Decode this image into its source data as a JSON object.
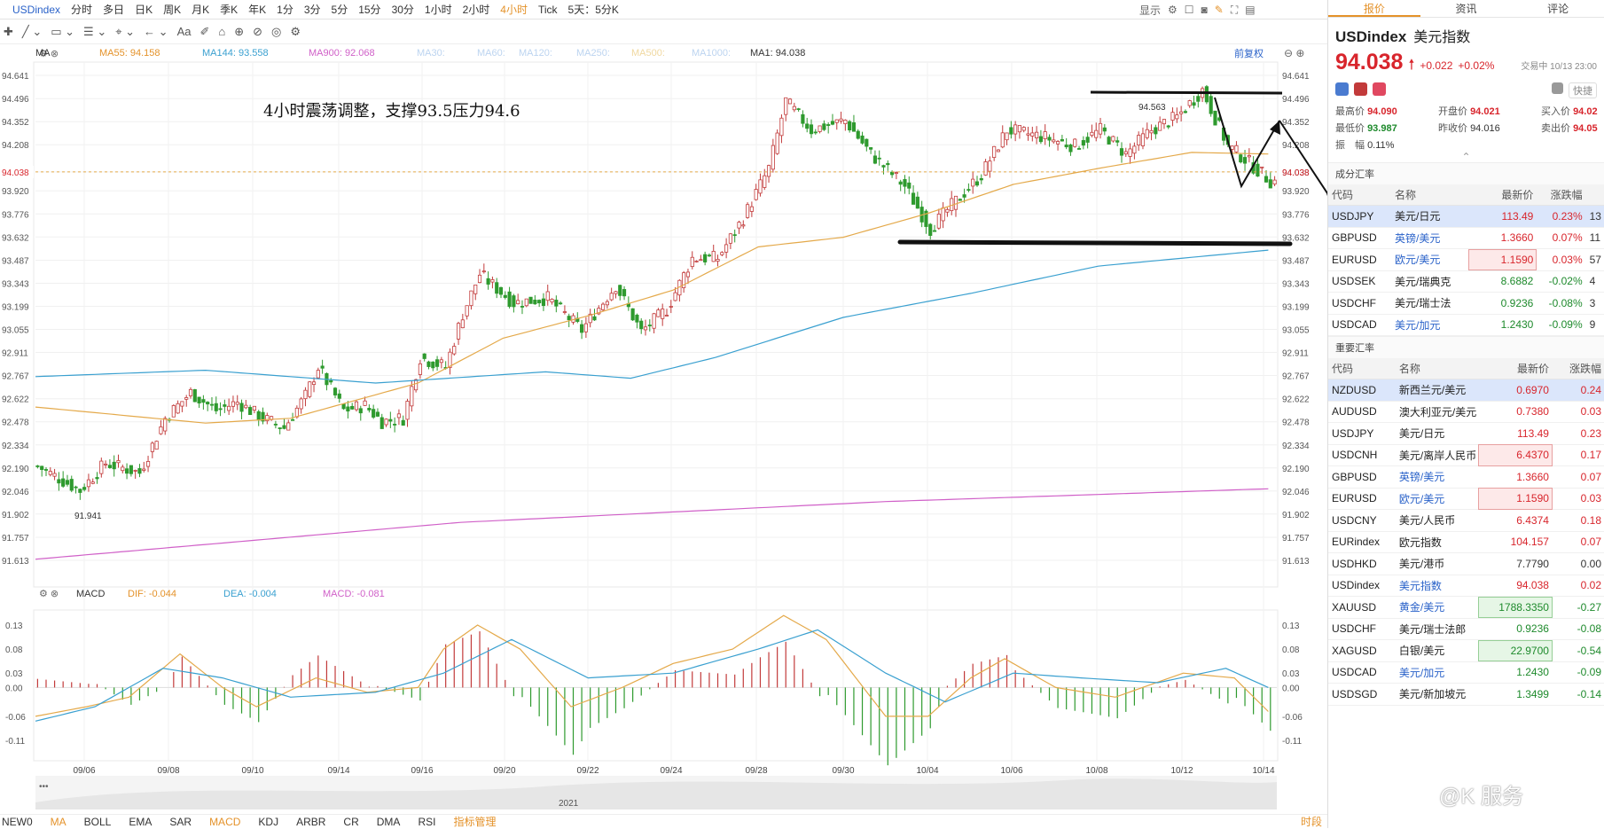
{
  "topbar": {
    "symbol": "USDindex",
    "periods": [
      "分时",
      "多日",
      "日K",
      "周K",
      "月K",
      "季K",
      "年K",
      "1分",
      "3分",
      "5分",
      "15分",
      "30分",
      "1小时",
      "2小时",
      "4小时",
      "Tick",
      "5天：5分K"
    ],
    "active_period": "4小时",
    "display_label": "显示"
  },
  "toolbar": {
    "icons": [
      "crosshair-icon",
      "line-icon",
      "rect-icon",
      "fib-icon",
      "measure-icon",
      "undo-icon",
      "text-icon",
      "eraser-icon",
      "settings-icon"
    ],
    "text_tool": "Aa"
  },
  "ma_legend": [
    {
      "label": "MA",
      "value": "",
      "color": "#333333"
    },
    {
      "label": "MA55: 94.158",
      "color": "#e4922a"
    },
    {
      "label": "MA144: 93.558",
      "color": "#3aa0d0"
    },
    {
      "label": "MA900: 92.068",
      "color": "#d060c8"
    },
    {
      "label": "MA30:",
      "color": "#bcd4f0"
    },
    {
      "label": "MA60:",
      "color": "#bcd4f0"
    },
    {
      "label": "MA120:",
      "color": "#bcd4f0"
    },
    {
      "label": "MA250:",
      "color": "#bcd4f0"
    },
    {
      "label": "MA500:",
      "color": "#f0d8a0"
    },
    {
      "label": "MA1000:",
      "color": "#bcd4f0"
    },
    {
      "label": "MA1: 94.038",
      "color": "#333333"
    }
  ],
  "qianfuquan": "前复权",
  "chart_data": {
    "type": "candlestick",
    "annotation": "4小时震荡调整，支撑93.5压力94.6",
    "price_axis_ticks": [
      94.641,
      94.496,
      94.352,
      94.208,
      94.038,
      93.92,
      93.776,
      93.632,
      93.487,
      93.343,
      93.199,
      93.055,
      92.911,
      92.767,
      92.622,
      92.478,
      92.334,
      92.19,
      92.046,
      91.902,
      91.757,
      91.613
    ],
    "current_price": "94.038",
    "high_label": "94.563",
    "low_label": "91.941",
    "date_ticks": [
      "09/06",
      "09/08",
      "09/10",
      "09/14",
      "09/16",
      "09/20",
      "09/22",
      "09/24",
      "09/28",
      "09/30",
      "10/04",
      "10/06",
      "10/08",
      "10/12",
      "10/14"
    ],
    "year_label": "2021",
    "price_path": [
      [
        0,
        92.2
      ],
      [
        10,
        92.05
      ],
      [
        16,
        92.22
      ],
      [
        24,
        92.16
      ],
      [
        30,
        92.5
      ],
      [
        36,
        92.66
      ],
      [
        42,
        92.55
      ],
      [
        47,
        92.6
      ],
      [
        53,
        92.5
      ],
      [
        58,
        92.44
      ],
      [
        63,
        92.64
      ],
      [
        66,
        92.82
      ],
      [
        72,
        92.55
      ],
      [
        77,
        92.58
      ],
      [
        81,
        92.48
      ],
      [
        86,
        92.5
      ],
      [
        90,
        92.88
      ],
      [
        96,
        92.82
      ],
      [
        100,
        93.15
      ],
      [
        104,
        93.4
      ],
      [
        112,
        93.22
      ],
      [
        120,
        93.25
      ],
      [
        128,
        93.05
      ],
      [
        136,
        93.33
      ],
      [
        142,
        93.04
      ],
      [
        148,
        93.18
      ],
      [
        154,
        93.5
      ],
      [
        160,
        93.5
      ],
      [
        166,
        93.75
      ],
      [
        172,
        94.06
      ],
      [
        176,
        94.48
      ],
      [
        182,
        94.3
      ],
      [
        190,
        94.36
      ],
      [
        196,
        94.15
      ],
      [
        204,
        93.95
      ],
      [
        210,
        93.68
      ],
      [
        214,
        93.8
      ],
      [
        222,
        94.02
      ],
      [
        228,
        94.3
      ],
      [
        236,
        94.26
      ],
      [
        244,
        94.2
      ],
      [
        250,
        94.3
      ],
      [
        256,
        94.15
      ],
      [
        262,
        94.3
      ],
      [
        268,
        94.38
      ],
      [
        274,
        94.55
      ],
      [
        280,
        94.2
      ],
      [
        284,
        94.12
      ],
      [
        290,
        93.98
      ]
    ],
    "ma55_path": [
      [
        0,
        92.57
      ],
      [
        40,
        92.47
      ],
      [
        60,
        92.5
      ],
      [
        90,
        92.72
      ],
      [
        110,
        93.0
      ],
      [
        130,
        93.14
      ],
      [
        150,
        93.3
      ],
      [
        170,
        93.57
      ],
      [
        190,
        93.63
      ],
      [
        210,
        93.78
      ],
      [
        230,
        93.96
      ],
      [
        250,
        94.06
      ],
      [
        272,
        94.16
      ],
      [
        290,
        94.15
      ]
    ],
    "ma144_path": [
      [
        0,
        92.76
      ],
      [
        40,
        92.8
      ],
      [
        80,
        92.72
      ],
      [
        120,
        92.79
      ],
      [
        140,
        92.75
      ],
      [
        160,
        92.88
      ],
      [
        190,
        93.13
      ],
      [
        220,
        93.28
      ],
      [
        250,
        93.45
      ],
      [
        290,
        93.55
      ]
    ],
    "ma900_path": [
      [
        0,
        91.62
      ],
      [
        100,
        91.85
      ],
      [
        200,
        91.98
      ],
      [
        290,
        92.06
      ]
    ],
    "macd": {
      "legend": [
        {
          "label": "MACD",
          "color": "#333333"
        },
        {
          "label": "DIF: -0.044",
          "color": "#e4922a"
        },
        {
          "label": "DEA: -0.004",
          "color": "#3aa0d0"
        },
        {
          "label": "MACD: -0.081",
          "color": "#d060c8"
        }
      ],
      "ticks": [
        "0.13",
        "0.08",
        "0.03",
        "0.00",
        "-0.06",
        "-0.11"
      ],
      "tick_values": [
        0.13,
        0.08,
        0.03,
        0.0,
        -0.06,
        -0.11
      ],
      "dif_path": [
        [
          0,
          -0.06
        ],
        [
          12,
          -0.04
        ],
        [
          22,
          -0.02
        ],
        [
          34,
          0.07
        ],
        [
          44,
          0.0
        ],
        [
          52,
          -0.04
        ],
        [
          66,
          0.02
        ],
        [
          78,
          -0.01
        ],
        [
          90,
          0.0
        ],
        [
          96,
          0.08
        ],
        [
          104,
          0.13
        ],
        [
          114,
          0.08
        ],
        [
          126,
          -0.04
        ],
        [
          138,
          0.0
        ],
        [
          150,
          0.05
        ],
        [
          164,
          0.08
        ],
        [
          176,
          0.15
        ],
        [
          186,
          0.1
        ],
        [
          200,
          -0.06
        ],
        [
          210,
          -0.06
        ],
        [
          220,
          0.02
        ],
        [
          228,
          0.06
        ],
        [
          240,
          0.0
        ],
        [
          254,
          -0.02
        ],
        [
          270,
          0.03
        ],
        [
          282,
          0.02
        ],
        [
          290,
          -0.05
        ]
      ],
      "dea_path": [
        [
          0,
          -0.07
        ],
        [
          14,
          -0.04
        ],
        [
          30,
          0.04
        ],
        [
          44,
          0.02
        ],
        [
          60,
          -0.02
        ],
        [
          80,
          -0.01
        ],
        [
          96,
          0.03
        ],
        [
          112,
          0.1
        ],
        [
          130,
          0.02
        ],
        [
          150,
          0.03
        ],
        [
          170,
          0.08
        ],
        [
          184,
          0.12
        ],
        [
          200,
          0.03
        ],
        [
          214,
          -0.03
        ],
        [
          230,
          0.03
        ],
        [
          246,
          0.02
        ],
        [
          264,
          0.01
        ],
        [
          280,
          0.04
        ],
        [
          290,
          0.0
        ]
      ]
    }
  },
  "bottombar": {
    "items": [
      "NEW0",
      "MA",
      "BOLL",
      "EMA",
      "SAR",
      "MACD",
      "KDJ",
      "ARBR",
      "CR",
      "DMA",
      "RSI",
      "指标管理"
    ],
    "active": [
      "MA",
      "MACD"
    ],
    "right": "时段"
  },
  "side": {
    "tabs": [
      "报价",
      "资讯",
      "评论"
    ],
    "active_tab": "报价",
    "code": "USDindex",
    "name": "美元指数",
    "price": "94.038",
    "change": "+0.022",
    "change_pct": "+0.02%",
    "status": "交易中 10/13 23:00",
    "stats": [
      {
        "k": "最高价",
        "v": "94.090",
        "c": "up"
      },
      {
        "k": "开盘价",
        "v": "94.021",
        "c": "up"
      },
      {
        "k": "买入价",
        "v": "94.02",
        "c": "up"
      },
      {
        "k": "最低价",
        "v": "93.987",
        "c": "dn"
      },
      {
        "k": "昨收价",
        "v": "94.016",
        "c": "n"
      },
      {
        "k": "卖出价",
        "v": "94.05",
        "c": "up"
      },
      {
        "k": "振　幅",
        "v": "0.11%",
        "c": "n"
      }
    ],
    "quick_label": "快捷",
    "section1": {
      "title": "成分汇率",
      "headers": [
        "代码",
        "名称",
        "最新价",
        "涨跌幅"
      ],
      "rows": [
        {
          "code": "USDJPY",
          "name": "美元/日元",
          "price": "113.49",
          "chg": "0.23%",
          "extra": "13",
          "dir": "up",
          "sel": true,
          "blue": false,
          "box": ""
        },
        {
          "code": "GBPUSD",
          "name": "英镑/美元",
          "price": "1.3660",
          "chg": "0.07%",
          "extra": "11",
          "dir": "up",
          "sel": false,
          "blue": true,
          "box": ""
        },
        {
          "code": "EURUSD",
          "name": "欧元/美元",
          "price": "1.1590",
          "chg": "0.03%",
          "extra": "57",
          "dir": "up",
          "sel": false,
          "blue": true,
          "box": "r"
        },
        {
          "code": "USDSEK",
          "name": "美元/瑞典克",
          "price": "8.6882",
          "chg": "-0.02%",
          "extra": "4",
          "dir": "dn",
          "sel": false,
          "blue": false,
          "box": ""
        },
        {
          "code": "USDCHF",
          "name": "美元/瑞士法",
          "price": "0.9236",
          "chg": "-0.08%",
          "extra": "3",
          "dir": "dn",
          "sel": false,
          "blue": false,
          "box": ""
        },
        {
          "code": "USDCAD",
          "name": "美元/加元",
          "price": "1.2430",
          "chg": "-0.09%",
          "extra": "9",
          "dir": "dn",
          "sel": false,
          "blue": true,
          "box": ""
        }
      ]
    },
    "section2": {
      "title": "重要汇率",
      "headers": [
        "代码",
        "名称",
        "最新价",
        "涨跌幅"
      ],
      "rows": [
        {
          "code": "NZDUSD",
          "name": "新西兰元/美元",
          "price": "0.6970",
          "chg": "0.24",
          "dir": "up",
          "sel": true,
          "blue": false,
          "box": ""
        },
        {
          "code": "AUDUSD",
          "name": "澳大利亚元/美元",
          "price": "0.7380",
          "chg": "0.03",
          "dir": "up",
          "sel": false,
          "blue": false,
          "box": ""
        },
        {
          "code": "USDJPY",
          "name": "美元/日元",
          "price": "113.49",
          "chg": "0.23",
          "dir": "up",
          "sel": false,
          "blue": false,
          "box": ""
        },
        {
          "code": "USDCNH",
          "name": "美元/离岸人民币",
          "price": "6.4370",
          "chg": "0.17",
          "dir": "up",
          "sel": false,
          "blue": false,
          "box": "r"
        },
        {
          "code": "GBPUSD",
          "name": "英镑/美元",
          "price": "1.3660",
          "chg": "0.07",
          "dir": "up",
          "sel": false,
          "blue": true,
          "box": ""
        },
        {
          "code": "EURUSD",
          "name": "欧元/美元",
          "price": "1.1590",
          "chg": "0.03",
          "dir": "up",
          "sel": false,
          "blue": true,
          "box": "r"
        },
        {
          "code": "USDCNY",
          "name": "美元/人民币",
          "price": "6.4374",
          "chg": "0.18",
          "dir": "up",
          "sel": false,
          "blue": false,
          "box": ""
        },
        {
          "code": "EURindex",
          "name": "欧元指数",
          "price": "104.157",
          "chg": "0.07",
          "dir": "up",
          "sel": false,
          "blue": false,
          "box": ""
        },
        {
          "code": "USDHKD",
          "name": "美元/港币",
          "price": "7.7790",
          "chg": "0.00",
          "dir": "n",
          "sel": false,
          "blue": false,
          "box": ""
        },
        {
          "code": "USDindex",
          "name": "美元指数",
          "price": "94.038",
          "chg": "0.02",
          "dir": "up",
          "sel": false,
          "blue": true,
          "box": ""
        },
        {
          "code": "XAUUSD",
          "name": "黄金/美元",
          "price": "1788.3350",
          "chg": "-0.27",
          "dir": "dn",
          "sel": false,
          "blue": true,
          "box": "g"
        },
        {
          "code": "USDCHF",
          "name": "美元/瑞士法郎",
          "price": "0.9236",
          "chg": "-0.08",
          "dir": "dn",
          "sel": false,
          "blue": false,
          "box": ""
        },
        {
          "code": "XAGUSD",
          "name": "白银/美元",
          "price": "22.9700",
          "chg": "-0.54",
          "dir": "dn",
          "sel": false,
          "blue": false,
          "box": "g"
        },
        {
          "code": "USDCAD",
          "name": "美元/加元",
          "price": "1.2430",
          "chg": "-0.09",
          "dir": "dn",
          "sel": false,
          "blue": true,
          "box": ""
        },
        {
          "code": "USDSGD",
          "name": "美元/新加坡元",
          "price": "1.3499",
          "chg": "-0.14",
          "dir": "dn",
          "sel": false,
          "blue": false,
          "box": ""
        }
      ]
    }
  },
  "watermark": "@K 服务"
}
